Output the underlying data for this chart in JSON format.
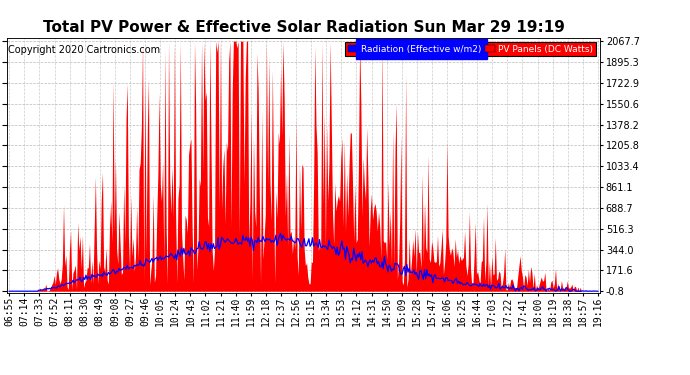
{
  "title": "Total PV Power & Effective Solar Radiation Sun Mar 29 19:19",
  "copyright": "Copyright 2020 Cartronics.com",
  "legend_label1": "Radiation (Effective w/m2)",
  "legend_label2": "PV Panels (DC Watts)",
  "y_ticks": [
    -0.8,
    171.6,
    344.0,
    516.3,
    688.7,
    861.1,
    1033.4,
    1205.8,
    1378.2,
    1550.6,
    1722.9,
    1895.3,
    2067.7
  ],
  "y_min": -0.8,
  "y_max": 2067.7,
  "background_color": "#ffffff",
  "plot_bg": "#ffffff",
  "grid_color": "#aaaaaa",
  "title_fontsize": 11,
  "copyright_fontsize": 7,
  "tick_fontsize": 7,
  "time_labels": [
    "06:55",
    "07:14",
    "07:33",
    "07:52",
    "08:11",
    "08:30",
    "08:49",
    "09:08",
    "09:27",
    "09:46",
    "10:05",
    "10:24",
    "10:43",
    "11:02",
    "11:21",
    "11:40",
    "11:59",
    "12:18",
    "12:37",
    "12:56",
    "13:15",
    "13:34",
    "13:53",
    "14:12",
    "14:31",
    "14:50",
    "15:09",
    "15:28",
    "15:47",
    "16:06",
    "16:25",
    "16:44",
    "17:03",
    "17:22",
    "17:41",
    "18:00",
    "18:19",
    "18:38",
    "18:57",
    "19:16"
  ]
}
